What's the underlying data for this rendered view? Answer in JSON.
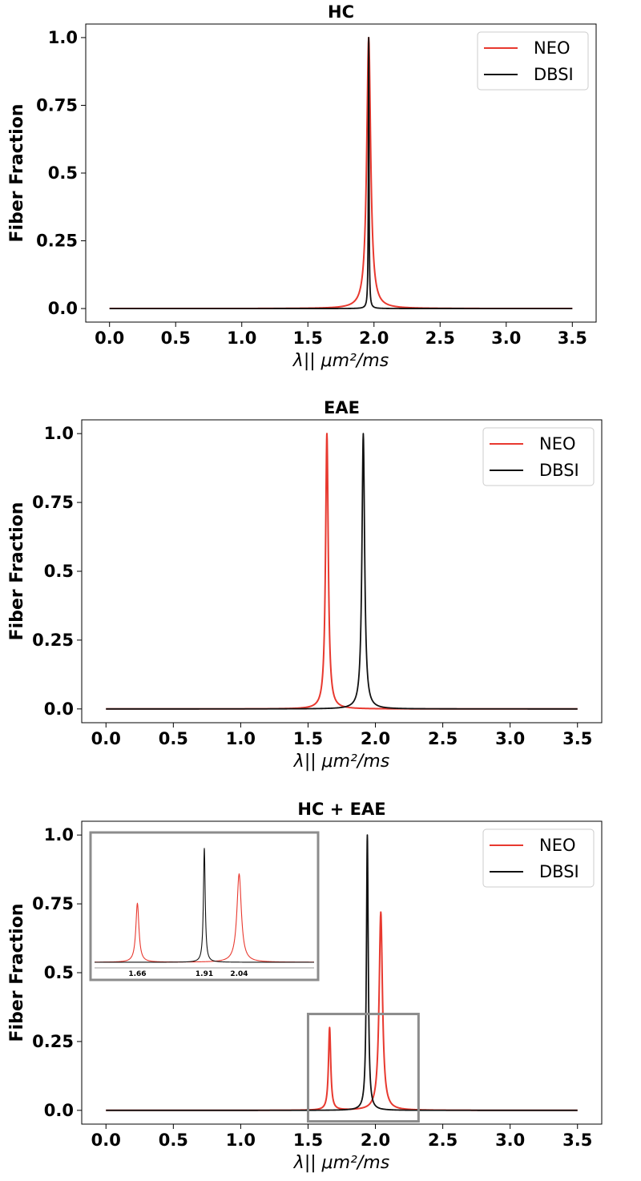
{
  "colors": {
    "neo": "#e8392f",
    "dbsi": "#111111",
    "box": "#8c8c8c",
    "axis": "#000000"
  },
  "chart_data": [
    {
      "type": "line",
      "title": "HC",
      "xlabel": "λ|| μm²/ms",
      "ylabel": "Fiber Fraction",
      "xlim": [
        -0.18,
        3.68
      ],
      "ylim": [
        -0.05,
        1.05
      ],
      "xticks": [
        "0.0",
        "0.5",
        "1.0",
        "1.5",
        "2.0",
        "2.5",
        "3.0",
        "3.5"
      ],
      "yticks": [
        "0.0",
        "0.25",
        "0.5",
        "0.75",
        "1.0"
      ],
      "legend": {
        "position": "top-right",
        "entries": [
          "NEO",
          "DBSI"
        ]
      },
      "series": [
        {
          "name": "NEO",
          "peaks": [
            {
              "x": 1.96,
              "height": 1.0,
              "width": 0.018
            }
          ]
        },
        {
          "name": "DBSI",
          "peaks": [
            {
              "x": 1.96,
              "height": 1.0,
              "width": 0.003
            }
          ]
        }
      ]
    },
    {
      "type": "line",
      "title": "EAE",
      "xlabel": "λ|| μm²/ms",
      "ylabel": "Fiber Fraction",
      "xlim": [
        -0.18,
        3.68
      ],
      "ylim": [
        -0.05,
        1.05
      ],
      "xticks": [
        "0.0",
        "0.5",
        "1.0",
        "1.5",
        "2.0",
        "2.5",
        "3.0",
        "3.5"
      ],
      "yticks": [
        "0.0",
        "0.25",
        "0.5",
        "0.75",
        "1.0"
      ],
      "legend": {
        "position": "top-right",
        "entries": [
          "NEO",
          "DBSI"
        ]
      },
      "series": [
        {
          "name": "NEO",
          "peaks": [
            {
              "x": 1.64,
              "height": 1.0,
              "width": 0.012
            }
          ]
        },
        {
          "name": "DBSI",
          "peaks": [
            {
              "x": 1.91,
              "height": 1.0,
              "width": 0.012
            }
          ]
        }
      ]
    },
    {
      "type": "line",
      "title": "HC + EAE",
      "xlabel": "λ|| μm²/ms",
      "ylabel": "Fiber Fraction",
      "xlim": [
        -0.18,
        3.68
      ],
      "ylim": [
        -0.05,
        1.05
      ],
      "xticks": [
        "0.0",
        "0.5",
        "1.0",
        "1.5",
        "2.0",
        "2.5",
        "3.0",
        "3.5"
      ],
      "yticks": [
        "0.0",
        "0.25",
        "0.5",
        "0.75",
        "1.0"
      ],
      "legend": {
        "position": "top-right",
        "entries": [
          "NEO",
          "DBSI"
        ]
      },
      "series": [
        {
          "name": "NEO",
          "peaks": [
            {
              "x": 1.66,
              "height": 0.3,
              "width": 0.01
            },
            {
              "x": 2.04,
              "height": 0.72,
              "width": 0.015
            }
          ]
        },
        {
          "name": "DBSI",
          "peaks": [
            {
              "x": 1.94,
              "height": 1.0,
              "width": 0.008
            }
          ]
        }
      ],
      "zoom_region": {
        "x": [
          1.5,
          2.32
        ],
        "y": [
          -0.04,
          0.35
        ]
      },
      "inset": {
        "position": "top-left",
        "tick_labels": [
          "1.66",
          "1.91",
          "2.04"
        ],
        "tick_values": [
          1.66,
          1.91,
          2.04
        ],
        "xlim": [
          1.5,
          2.32
        ],
        "ylim": [
          -0.04,
          1.05
        ]
      }
    }
  ]
}
